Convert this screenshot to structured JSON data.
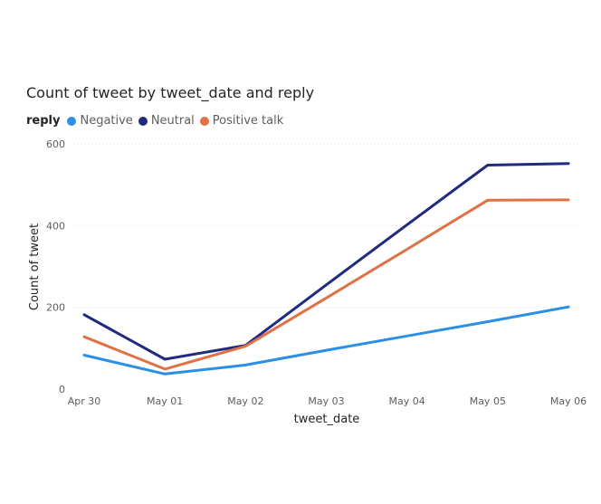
{
  "chart_data": {
    "type": "line",
    "title": "Count of tweet by tweet_date and reply",
    "xlabel": "tweet_date",
    "ylabel": "Count of tweet",
    "legend_title": "reply",
    "legend_position": "top-left",
    "categories": [
      "Apr 30",
      "May 01",
      "May 02",
      "May 03",
      "May 04",
      "May 05",
      "May 06"
    ],
    "ylim": [
      0,
      600
    ],
    "yticks": [
      0,
      200,
      400,
      600
    ],
    "grid": true,
    "series": [
      {
        "name": "Negative",
        "color": "#2b8fe6",
        "values": [
          83,
          37,
          59,
          95,
          130,
          165,
          201
        ]
      },
      {
        "name": "Neutral",
        "color": "#1f2a80",
        "values": [
          182,
          73,
          107,
          255,
          402,
          548,
          552
        ]
      },
      {
        "name": "Positive talk",
        "color": "#e07045",
        "values": [
          128,
          49,
          105,
          223,
          342,
          462,
          463
        ]
      }
    ]
  }
}
